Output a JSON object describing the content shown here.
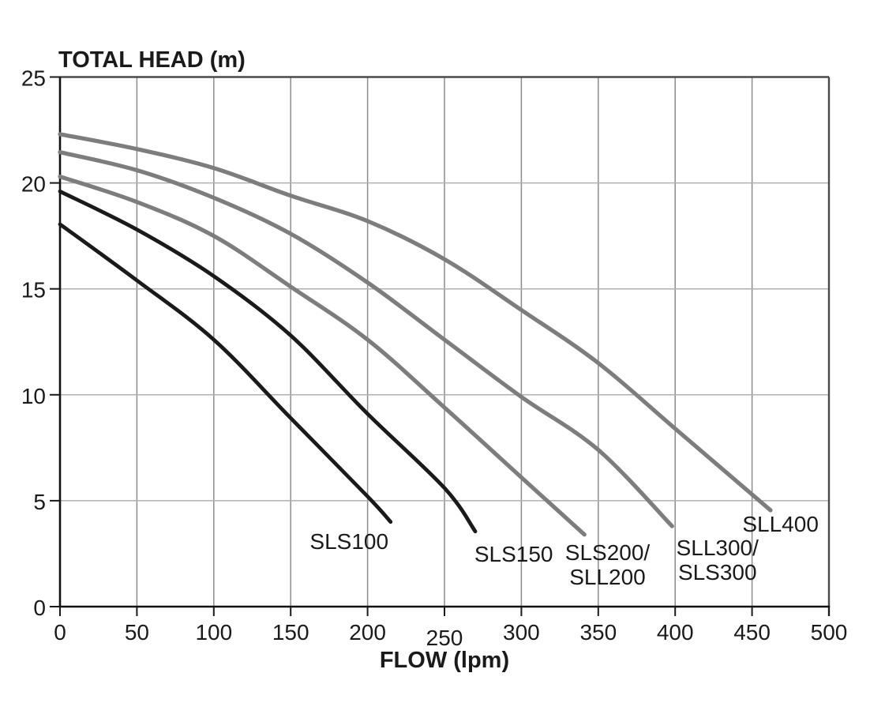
{
  "chart_data": {
    "type": "line",
    "title": "TOTAL HEAD (m)",
    "xlabel": "FLOW (lpm)",
    "ylabel": "TOTAL HEAD (m)",
    "xlim": [
      0,
      500
    ],
    "ylim": [
      0,
      25
    ],
    "x_ticks": [
      0,
      50,
      100,
      150,
      200,
      250,
      300,
      350,
      400,
      450,
      500
    ],
    "y_ticks": [
      0,
      5,
      10,
      15,
      20,
      25
    ],
    "grid": true,
    "legend_position": "inline-curve-labels",
    "colors": {
      "black": "#1a1a1a",
      "gray": "#7d7d7d"
    },
    "series": [
      {
        "name": "SLS100",
        "color_key": "black",
        "points": [
          [
            0,
            18.05
          ],
          [
            50,
            15.4
          ],
          [
            100,
            12.6
          ],
          [
            150,
            8.9
          ],
          [
            200,
            5.2
          ],
          [
            215,
            4.0
          ]
        ],
        "label": {
          "lines": [
            "SLS100"
          ],
          "x": 188,
          "y": 3.1
        }
      },
      {
        "name": "SLS150",
        "color_key": "black",
        "points": [
          [
            0,
            19.6
          ],
          [
            50,
            17.8
          ],
          [
            100,
            15.6
          ],
          [
            150,
            12.8
          ],
          [
            200,
            9.1
          ],
          [
            250,
            5.6
          ],
          [
            270,
            3.55
          ]
        ],
        "label": {
          "lines": [
            "SLS150"
          ],
          "x": 295,
          "y": 2.5
        }
      },
      {
        "name": "SLS200/SLL200",
        "color_key": "gray",
        "points": [
          [
            0,
            20.3
          ],
          [
            50,
            19.1
          ],
          [
            100,
            17.5
          ],
          [
            150,
            15.1
          ],
          [
            200,
            12.6
          ],
          [
            250,
            9.4
          ],
          [
            300,
            6.1
          ],
          [
            341,
            3.4
          ]
        ],
        "label": {
          "lines": [
            "SLS200/",
            "SLL200"
          ],
          "x": 356,
          "y": 2.57
        }
      },
      {
        "name": "SLL300/SLS300",
        "color_key": "gray",
        "points": [
          [
            0,
            21.45
          ],
          [
            50,
            20.6
          ],
          [
            100,
            19.3
          ],
          [
            150,
            17.6
          ],
          [
            200,
            15.3
          ],
          [
            250,
            12.6
          ],
          [
            300,
            9.9
          ],
          [
            350,
            7.4
          ],
          [
            398,
            3.8
          ]
        ],
        "label": {
          "lines": [
            "SLL300/",
            "SLS300"
          ],
          "x": 427.5,
          "y": 2.79
        }
      },
      {
        "name": "SLL400",
        "color_key": "gray",
        "points": [
          [
            0,
            22.3
          ],
          [
            50,
            21.6
          ],
          [
            100,
            20.7
          ],
          [
            150,
            19.4
          ],
          [
            200,
            18.2
          ],
          [
            250,
            16.4
          ],
          [
            300,
            14.0
          ],
          [
            350,
            11.5
          ],
          [
            400,
            8.4
          ],
          [
            462,
            4.55
          ]
        ],
        "label": {
          "lines": [
            "SLL400"
          ],
          "x": 468.5,
          "y": 3.92
        }
      }
    ]
  }
}
